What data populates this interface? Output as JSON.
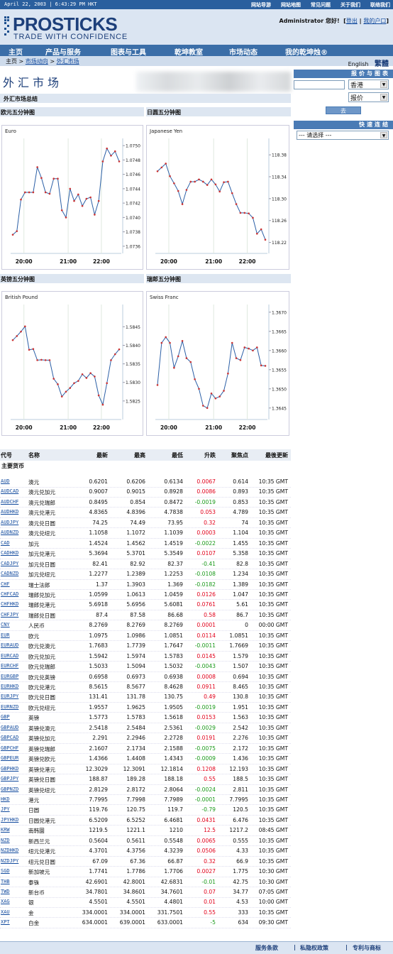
{
  "topbar": {
    "date": "April 22, 2003 | 6:43:29 PM HKT",
    "links": [
      "网站导游",
      "网站地图",
      "常见问题",
      "关于我们",
      "联络我们"
    ]
  },
  "logo": {
    "name": "PROSTICKS",
    "tagline": "TRADE WITH CONFIDENCE"
  },
  "user": {
    "name": "Administrator",
    "greeting": "您好!",
    "logout": "登出",
    "portal": "我的户口"
  },
  "nav": [
    "主页",
    "产品与服务",
    "图表与工具",
    "乾坤教室",
    "市场动态",
    "我的乾坤烛®"
  ],
  "breadcrumb": {
    "home": "主页",
    "market": "市场动向",
    "fx": "外汇市场",
    "english": "English",
    "trad": "繁體"
  },
  "page": {
    "title": "外汇市场",
    "summary": "外汇市场总结"
  },
  "sidebar": {
    "quote_title": "报价与图表",
    "quote_input": "",
    "market_value": "香港",
    "type_value": "报价",
    "go": "去",
    "quick_title": "快速连结",
    "quick_value": "--- 请选择 ---"
  },
  "chart_data": [
    {
      "type": "line",
      "title": "欧元五分钟图",
      "label": "Euro",
      "xticks": [
        "20:00",
        "21:00",
        "22:00"
      ],
      "yticks": [
        "1.0750",
        "1.0748",
        "1.0746",
        "1.0744",
        "1.0742",
        "1.0740",
        "1.0738",
        "1.0736"
      ],
      "ylim": [
        1.0735,
        1.0751
      ],
      "values": [
        1.07376,
        1.07381,
        1.07425,
        1.07435,
        1.07435,
        1.07435,
        1.0747,
        1.07455,
        1.07435,
        1.07433,
        1.07454,
        1.07454,
        1.0741,
        1.074,
        1.0744,
        1.07423,
        1.07432,
        1.07416,
        1.07426,
        1.07428,
        1.07404,
        1.07423,
        1.07478,
        1.07496,
        1.07486,
        1.07492,
        1.07478
      ]
    },
    {
      "type": "line",
      "title": "日圆五分钟图",
      "label": "Japanese Yen",
      "xticks": [
        "20:00",
        "21:00",
        "22:00"
      ],
      "yticks": [
        "118.38",
        "118.34",
        "118.30",
        "118.26",
        "118.22"
      ],
      "ylim": [
        118.2,
        118.41
      ],
      "values": [
        118.35,
        118.357,
        118.364,
        118.341,
        118.328,
        118.314,
        118.29,
        118.316,
        118.331,
        118.331,
        118.335,
        118.331,
        118.325,
        118.335,
        118.326,
        118.313,
        118.33,
        118.331,
        118.31,
        118.29,
        118.274,
        118.274,
        118.273,
        118.265,
        118.236,
        118.244,
        118.225
      ]
    },
    {
      "type": "line",
      "title": "英镑五分钟图",
      "label": "British Pound",
      "xticks": [
        "20:00",
        "21:00",
        "22:00"
      ],
      "yticks": [
        "1.5845",
        "1.5840",
        "1.5835",
        "1.5830",
        "1.5825"
      ],
      "ylim": [
        1.582,
        1.5851
      ],
      "values": [
        1.58414,
        1.58425,
        1.58437,
        1.58451,
        1.58388,
        1.5839,
        1.5836,
        1.58361,
        1.5836,
        1.5836,
        1.5831,
        1.58295,
        1.58262,
        1.58275,
        1.58285,
        1.58298,
        1.58304,
        1.58322,
        1.58312,
        1.58325,
        1.58316,
        1.58265,
        1.5824,
        1.58298,
        1.5836,
        1.58376,
        1.58389
      ]
    },
    {
      "type": "line",
      "title": "瑞郎五分钟图",
      "label": "Swiss Franc",
      "xticks": [
        "20:00",
        "21:00",
        "22:00"
      ],
      "yticks": [
        "1.3670",
        "1.3665",
        "1.3660",
        "1.3655",
        "1.3650",
        "1.3645"
      ],
      "ylim": [
        1.3642,
        1.3672
      ],
      "values": [
        1.3651,
        1.3662,
        1.36635,
        1.3662,
        1.36555,
        1.36585,
        1.36625,
        1.3658,
        1.3657,
        1.36525,
        1.365,
        1.36456,
        1.3645,
        1.36488,
        1.36475,
        1.3648,
        1.36495,
        1.3654,
        1.3662,
        1.3658,
        1.36575,
        1.36608,
        1.36605,
        1.366,
        1.36608,
        1.36561,
        1.3656
      ]
    }
  ],
  "table": {
    "headers": [
      "代号",
      "名称",
      "最新",
      "最高",
      "最低",
      "升跌",
      "聚焦点",
      "最後更新"
    ],
    "group": "主要货币",
    "rows": [
      [
        "AUD",
        "澳元",
        "0.6201",
        "0.6206",
        "0.6134",
        "0.0067",
        "0.614",
        "10:35 GMT"
      ],
      [
        "AUDCAD",
        "澳元兑加元",
        "0.9007",
        "0.9015",
        "0.8928",
        "0.0086",
        "0.893",
        "10:35 GMT"
      ],
      [
        "AUDCHF",
        "澳元兑瑞郎",
        "0.8495",
        "0.854",
        "0.8472",
        "-0.0019",
        "0.853",
        "10:35 GMT"
      ],
      [
        "AUDHKD",
        "澳元兑港元",
        "4.8365",
        "4.8396",
        "4.7838",
        "0.053",
        "4.789",
        "10:35 GMT"
      ],
      [
        "AUDJPY",
        "澳元兑日圆",
        "74.25",
        "74.49",
        "73.95",
        "0.32",
        "74",
        "10:35 GMT"
      ],
      [
        "AUDNZD",
        "澳元兑纽元",
        "1.1058",
        "1.1072",
        "1.1039",
        "0.0003",
        "1.104",
        "10:35 GMT"
      ],
      [
        "CAD",
        "加元",
        "1.4524",
        "1.4562",
        "1.4519",
        "-0.0022",
        "1.455",
        "10:35 GMT"
      ],
      [
        "CADHKD",
        "加元兑港元",
        "5.3694",
        "5.3701",
        "5.3549",
        "0.0107",
        "5.358",
        "10:35 GMT"
      ],
      [
        "CADJPY",
        "加元兑日圆",
        "82.41",
        "82.92",
        "82.37",
        "-0.41",
        "82.8",
        "10:35 GMT"
      ],
      [
        "CADNZD",
        "加元兑纽元",
        "1.2277",
        "1.2389",
        "1.2253",
        "-0.0108",
        "1.234",
        "10:35 GMT"
      ],
      [
        "CHF",
        "瑞士法郎",
        "1.37",
        "1.3903",
        "1.369",
        "-0.0182",
        "1.389",
        "10:35 GMT"
      ],
      [
        "CHFCAD",
        "瑞郎兑加元",
        "1.0599",
        "1.0613",
        "1.0459",
        "0.0126",
        "1.047",
        "10:35 GMT"
      ],
      [
        "CHFHKD",
        "瑞郎兑港元",
        "5.6918",
        "5.6956",
        "5.6081",
        "0.0761",
        "5.61",
        "10:35 GMT"
      ],
      [
        "CHFJPY",
        "瑞郎兑日圆",
        "87.4",
        "87.58",
        "86.68",
        "0.58",
        "86.7",
        "10:35 GMT"
      ],
      [
        "CNY",
        "人民币",
        "8.2769",
        "8.2769",
        "8.2769",
        "0.0001",
        "0",
        "00:00 GMT"
      ],
      [
        "EUR",
        "欧元",
        "1.0975",
        "1.0986",
        "1.0851",
        "0.0114",
        "1.0851",
        "10:35 GMT"
      ],
      [
        "EURAUD",
        "欧元兑澳元",
        "1.7683",
        "1.7739",
        "1.7647",
        "-0.0011",
        "1.7669",
        "10:35 GMT"
      ],
      [
        "EURCAD",
        "欧元兑加元",
        "1.5942",
        "1.5974",
        "1.5783",
        "0.0145",
        "1.579",
        "10:35 GMT"
      ],
      [
        "EURCHF",
        "欧元兑瑞郎",
        "1.5033",
        "1.5094",
        "1.5032",
        "-0.0043",
        "1.507",
        "10:35 GMT"
      ],
      [
        "EURGBP",
        "欧元兑英镑",
        "0.6958",
        "0.6973",
        "0.6938",
        "0.0008",
        "0.694",
        "10:35 GMT"
      ],
      [
        "EURHKD",
        "欧元兑港元",
        "8.5615",
        "8.5677",
        "8.4628",
        "0.0911",
        "8.465",
        "10:35 GMT"
      ],
      [
        "EURJPY",
        "欧元兑日圆",
        "131.41",
        "131.78",
        "130.75",
        "0.49",
        "130.8",
        "10:35 GMT"
      ],
      [
        "EURNZD",
        "欧元兑纽元",
        "1.9557",
        "1.9625",
        "1.9505",
        "-0.0019",
        "1.951",
        "10:35 GMT"
      ],
      [
        "GBP",
        "英镑",
        "1.5773",
        "1.5783",
        "1.5618",
        "0.0153",
        "1.563",
        "10:35 GMT"
      ],
      [
        "GBPAUD",
        "英镑兑澳元",
        "2.5418",
        "2.5484",
        "2.5361",
        "-0.0029",
        "2.542",
        "10:35 GMT"
      ],
      [
        "GBPCAD",
        "英镑兑加元",
        "2.291",
        "2.2946",
        "2.2728",
        "0.0191",
        "2.276",
        "10:35 GMT"
      ],
      [
        "GBPCHF",
        "英镑兑瑞郎",
        "2.1607",
        "2.1734",
        "2.1588",
        "-0.0075",
        "2.172",
        "10:35 GMT"
      ],
      [
        "GBPEUR",
        "英镑兑欧元",
        "1.4366",
        "1.4408",
        "1.4343",
        "-0.0009",
        "1.436",
        "10:35 GMT"
      ],
      [
        "GBPHKD",
        "英镑兑港元",
        "12.3029",
        "12.3091",
        "12.1814",
        "0.1208",
        "12.193",
        "10:35 GMT"
      ],
      [
        "GBPJPY",
        "英镑兑日圆",
        "188.87",
        "189.28",
        "188.18",
        "0.55",
        "188.5",
        "10:35 GMT"
      ],
      [
        "GBPNZD",
        "英镑兑纽元",
        "2.8129",
        "2.8172",
        "2.8064",
        "-0.0024",
        "2.811",
        "10:35 GMT"
      ],
      [
        "HKD",
        "港元",
        "7.7995",
        "7.7998",
        "7.7989",
        "-0.0001",
        "7.7995",
        "10:35 GMT"
      ],
      [
        "JPY",
        "日圆",
        "119.76",
        "120.75",
        "119.7",
        "-0.79",
        "120.5",
        "10:35 GMT"
      ],
      [
        "JPYHKD",
        "日圆兑港元",
        "6.5209",
        "6.5252",
        "6.4681",
        "0.0431",
        "6.476",
        "10:35 GMT"
      ],
      [
        "KRW",
        "南韩圜",
        "1219.5",
        "1221.1",
        "1210",
        "12.5",
        "1217.2",
        "08:45 GMT"
      ],
      [
        "NZD",
        "新西兰元",
        "0.5604",
        "0.5611",
        "0.5548",
        "0.0065",
        "0.555",
        "10:35 GMT"
      ],
      [
        "NZDHKD",
        "纽元兑港元",
        "4.3701",
        "4.3756",
        "4.3239",
        "0.0506",
        "4.33",
        "10:35 GMT"
      ],
      [
        "NZDJPY",
        "纽元兑日圆",
        "67.09",
        "67.36",
        "66.87",
        "0.32",
        "66.9",
        "10:35 GMT"
      ],
      [
        "SGD",
        "新加坡元",
        "1.7741",
        "1.7786",
        "1.7706",
        "0.0027",
        "1.775",
        "10:30 GMT"
      ],
      [
        "THB",
        "泰铢",
        "42.6901",
        "42.8001",
        "42.6831",
        "-0.01",
        "42.75",
        "10:30 GMT"
      ],
      [
        "TWD",
        "新台币",
        "34.7801",
        "34.8601",
        "34.7601",
        "0.07",
        "34.77",
        "07:05 GMT"
      ],
      [
        "XAG",
        "银",
        "4.5501",
        "4.5501",
        "4.4801",
        "0.01",
        "4.53",
        "10:00 GMT"
      ],
      [
        "XAU",
        "金",
        "334.0001",
        "334.0001",
        "331.7501",
        "0.55",
        "333",
        "10:35 GMT"
      ],
      [
        "XPT",
        "白金",
        "634.0001",
        "639.0001",
        "633.0001",
        "-5",
        "634",
        "09:30 GMT"
      ]
    ]
  },
  "footer": [
    "服务条款",
    "私隐权政策",
    "专利与商标"
  ],
  "colors": {
    "up": "#e2001a",
    "down": "#1a9a1a",
    "accent": "#3b6ea8"
  }
}
